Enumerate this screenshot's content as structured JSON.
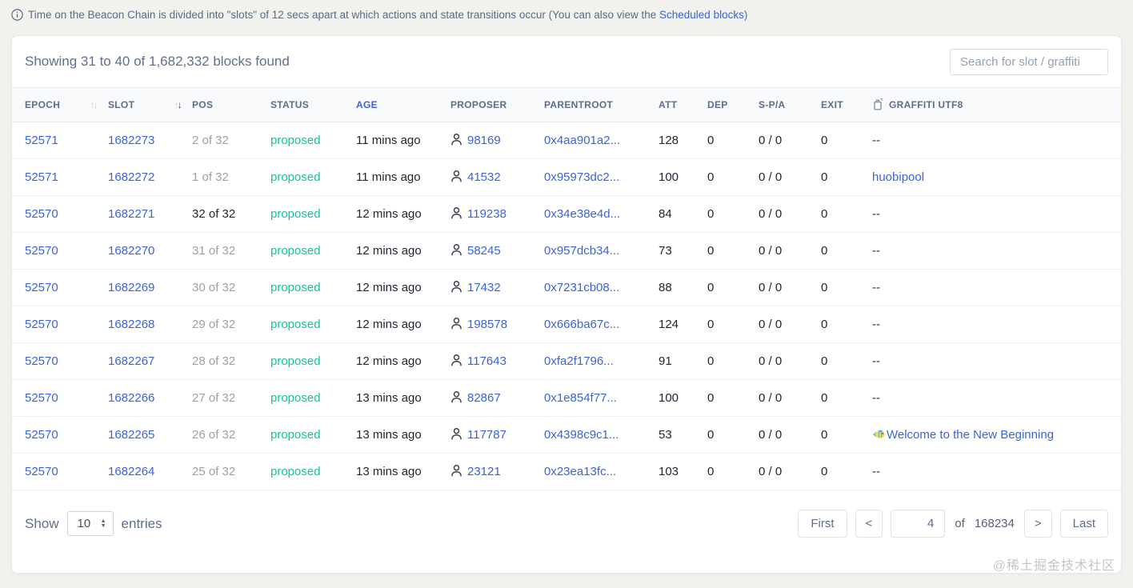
{
  "banner": {
    "text_before_link": "Time on the Beacon Chain is divided into \"slots\" of 12 secs apart at which actions and state transitions occur (You can also view the ",
    "link_label": "Scheduled blocks",
    "text_after_link": ")"
  },
  "card": {
    "summary": "Showing 31 to 40 of 1,682,332 blocks found",
    "search_placeholder": "Search for slot / graffiti"
  },
  "table": {
    "columns": [
      {
        "label": "EPOCH",
        "sort": "inactive"
      },
      {
        "label": "SLOT",
        "sort": "desc"
      },
      {
        "label": "POS"
      },
      {
        "label": "STATUS"
      },
      {
        "label": "AGE",
        "accent": true
      },
      {
        "label": "PROPOSER"
      },
      {
        "label": "PARENTROOT"
      },
      {
        "label": "ATT"
      },
      {
        "label": "DEP"
      },
      {
        "label": "S-P/A"
      },
      {
        "label": "EXIT"
      },
      {
        "label": "GRAFFITI UTF8",
        "icon": "spray-can-icon"
      }
    ],
    "rows": [
      {
        "epoch": "52571",
        "slot": "1682273",
        "pos": "2 of 32",
        "pos_muted": true,
        "status": "proposed",
        "age": "11 mins ago",
        "proposer": "98169",
        "parentroot": "0x4aa901a2...",
        "att": "128",
        "dep": "0",
        "spa": "0 / 0",
        "exit": "0",
        "graffiti": "--",
        "graffiti_is_link": false,
        "graffiti_emoji": ""
      },
      {
        "epoch": "52571",
        "slot": "1682272",
        "pos": "1 of 32",
        "pos_muted": true,
        "status": "proposed",
        "age": "11 mins ago",
        "proposer": "41532",
        "parentroot": "0x95973dc2...",
        "att": "100",
        "dep": "0",
        "spa": "0 / 0",
        "exit": "0",
        "graffiti": "huobipool",
        "graffiti_is_link": true,
        "graffiti_emoji": ""
      },
      {
        "epoch": "52570",
        "slot": "1682271",
        "pos": "32 of 32",
        "pos_muted": false,
        "status": "proposed",
        "age": "12 mins ago",
        "proposer": "119238",
        "parentroot": "0x34e38e4d...",
        "att": "84",
        "dep": "0",
        "spa": "0 / 0",
        "exit": "0",
        "graffiti": "--",
        "graffiti_is_link": false,
        "graffiti_emoji": ""
      },
      {
        "epoch": "52570",
        "slot": "1682270",
        "pos": "31 of 32",
        "pos_muted": true,
        "status": "proposed",
        "age": "12 mins ago",
        "proposer": "58245",
        "parentroot": "0x957dcb34...",
        "att": "73",
        "dep": "0",
        "spa": "0 / 0",
        "exit": "0",
        "graffiti": "--",
        "graffiti_is_link": false,
        "graffiti_emoji": ""
      },
      {
        "epoch": "52570",
        "slot": "1682269",
        "pos": "30 of 32",
        "pos_muted": true,
        "status": "proposed",
        "age": "12 mins ago",
        "proposer": "17432",
        "parentroot": "0x7231cb08...",
        "att": "88",
        "dep": "0",
        "spa": "0 / 0",
        "exit": "0",
        "graffiti": "--",
        "graffiti_is_link": false,
        "graffiti_emoji": ""
      },
      {
        "epoch": "52570",
        "slot": "1682268",
        "pos": "29 of 32",
        "pos_muted": true,
        "status": "proposed",
        "age": "12 mins ago",
        "proposer": "198578",
        "parentroot": "0x666ba67c...",
        "att": "124",
        "dep": "0",
        "spa": "0 / 0",
        "exit": "0",
        "graffiti": "--",
        "graffiti_is_link": false,
        "graffiti_emoji": ""
      },
      {
        "epoch": "52570",
        "slot": "1682267",
        "pos": "28 of 32",
        "pos_muted": true,
        "status": "proposed",
        "age": "12 mins ago",
        "proposer": "117643",
        "parentroot": "0xfa2f1796...",
        "att": "91",
        "dep": "0",
        "spa": "0 / 0",
        "exit": "0",
        "graffiti": "--",
        "graffiti_is_link": false,
        "graffiti_emoji": ""
      },
      {
        "epoch": "52570",
        "slot": "1682266",
        "pos": "27 of 32",
        "pos_muted": true,
        "status": "proposed",
        "age": "13 mins ago",
        "proposer": "82867",
        "parentroot": "0x1e854f77...",
        "att": "100",
        "dep": "0",
        "spa": "0 / 0",
        "exit": "0",
        "graffiti": "--",
        "graffiti_is_link": false,
        "graffiti_emoji": ""
      },
      {
        "epoch": "52570",
        "slot": "1682265",
        "pos": "26 of 32",
        "pos_muted": true,
        "status": "proposed",
        "age": "13 mins ago",
        "proposer": "117787",
        "parentroot": "0x4398c9c1...",
        "att": "53",
        "dep": "0",
        "spa": "0 / 0",
        "exit": "0",
        "graffiti": "Welcome to the New Beginning",
        "graffiti_is_link": true,
        "graffiti_emoji": "🐠"
      },
      {
        "epoch": "52570",
        "slot": "1682264",
        "pos": "25 of 32",
        "pos_muted": true,
        "status": "proposed",
        "age": "13 mins ago",
        "proposer": "23121",
        "parentroot": "0x23ea13fc...",
        "att": "103",
        "dep": "0",
        "spa": "0 / 0",
        "exit": "0",
        "graffiti": "--",
        "graffiti_is_link": false,
        "graffiti_emoji": ""
      }
    ]
  },
  "footer": {
    "show_label": "Show",
    "page_size": "10",
    "entries_label": "entries",
    "pagination": {
      "first": "First",
      "prev": "<",
      "page_value": "4",
      "of_label": "of",
      "total_pages": "168234",
      "next": ">",
      "last": "Last"
    }
  },
  "watermark": "@稀土掘金技术社区",
  "colors": {
    "link_blue": "#3b63d8",
    "status_green": "#16c39a",
    "header_text": "#5b6e8c",
    "muted_gray": "#9ba1a7",
    "page_background": "#f1f2ee"
  }
}
